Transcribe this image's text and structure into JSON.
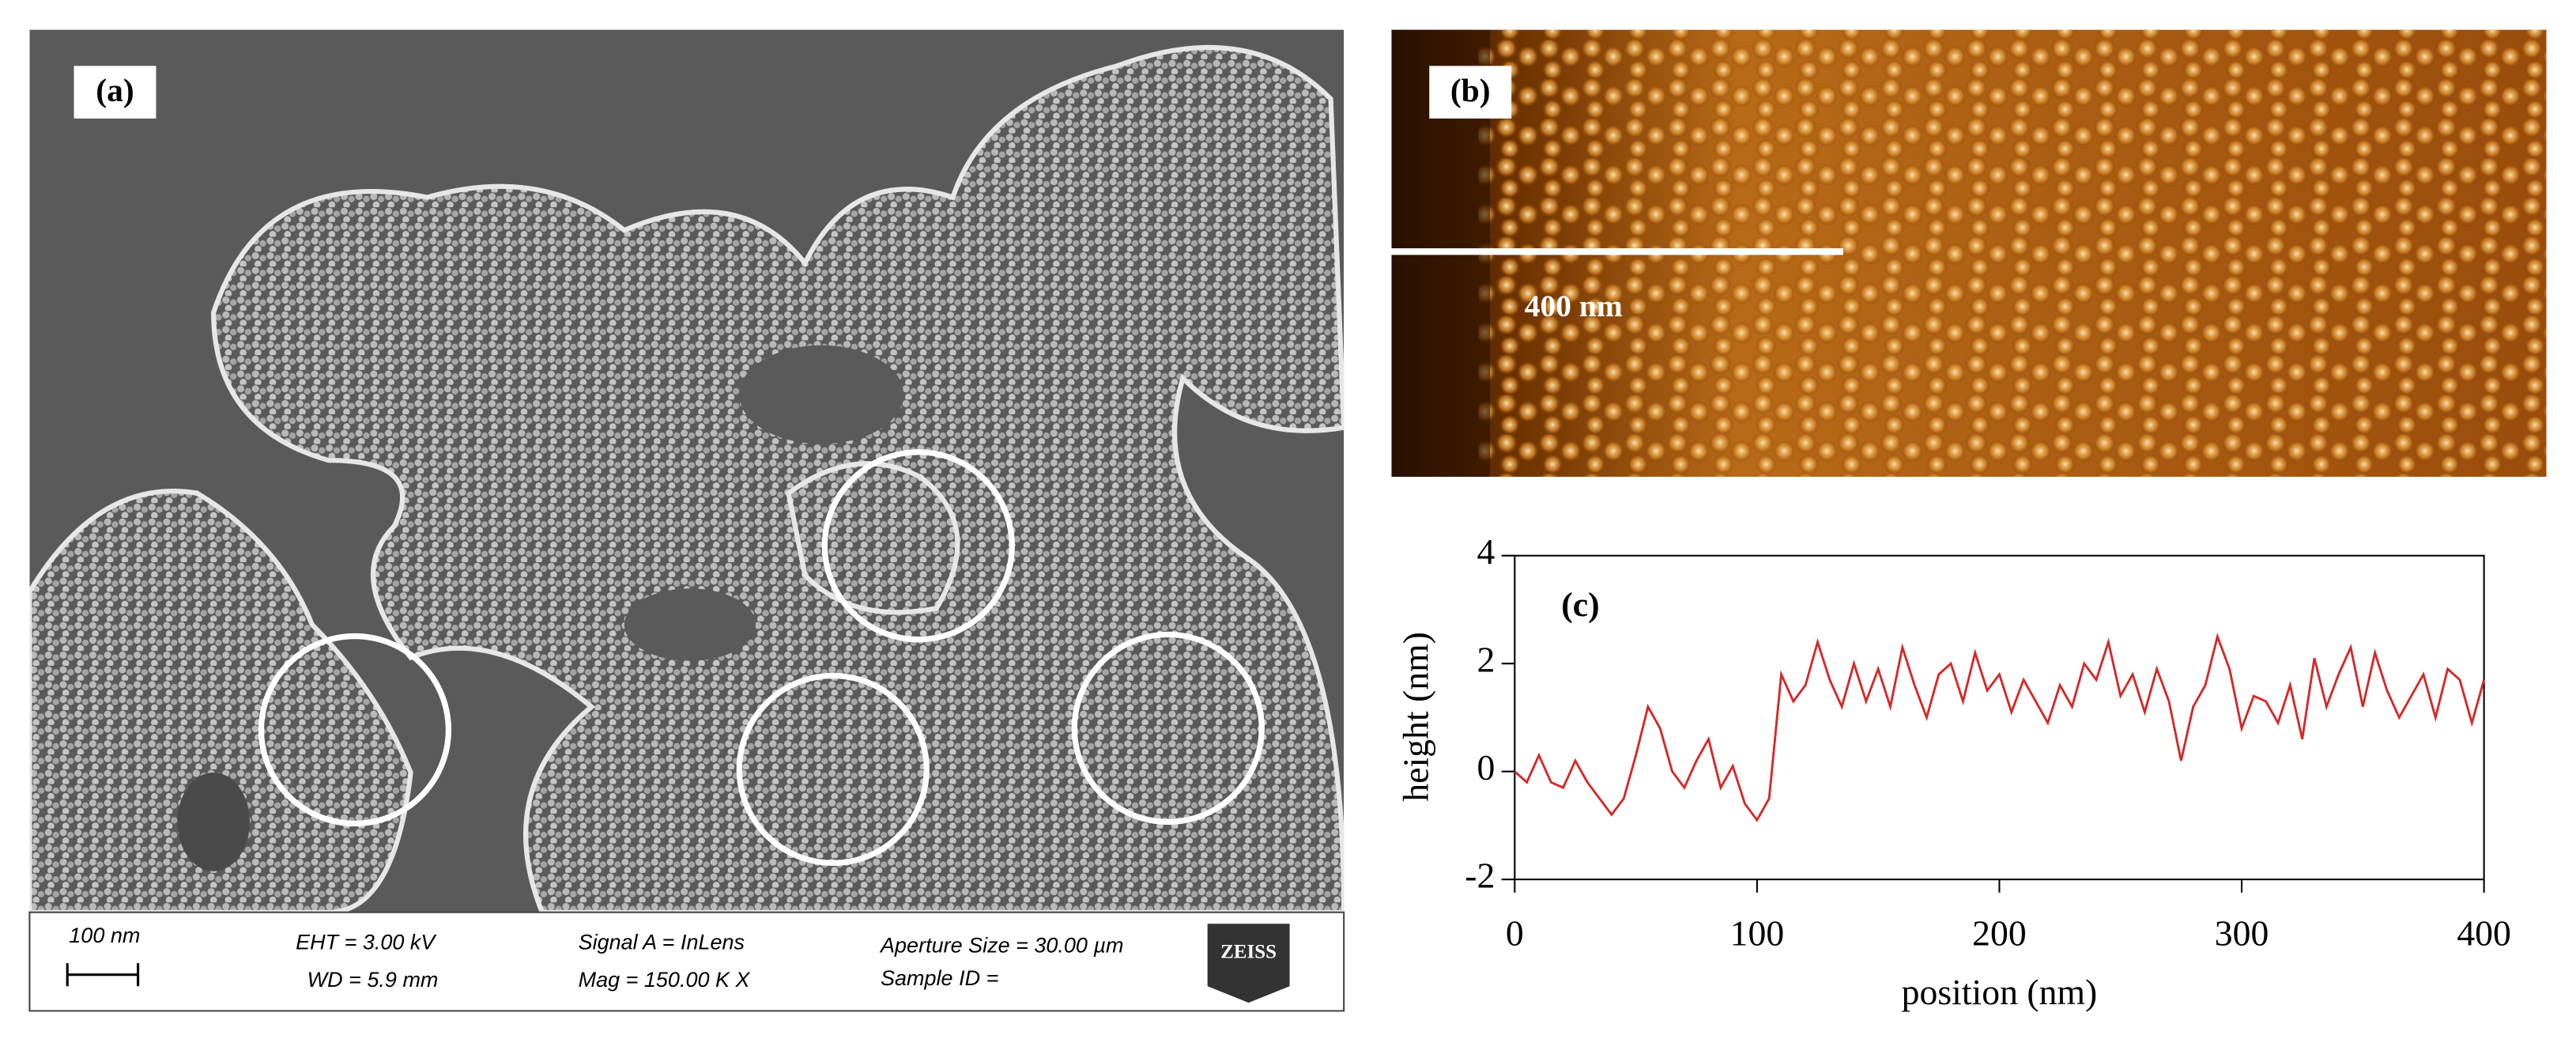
{
  "panels": {
    "a": {
      "label": "(a)",
      "scale_bar": "100 nm",
      "info": {
        "eht": "EHT = 3.00 kV",
        "wd": "WD = 5.9 mm",
        "signal": "Signal A = InLens",
        "mag": "Mag = 150.00 K X",
        "aperture": "Aperture Size = 30.00 µm",
        "sample": "Sample ID ="
      },
      "logo": "ZEISS"
    },
    "b": {
      "label": "(b)",
      "scale_bar": "400 nm"
    }
  },
  "chart_data": {
    "type": "line",
    "annotation": "(c)",
    "x_label": "position (nm)",
    "y_label": "height (nm)",
    "xlim": [
      0,
      400
    ],
    "ylim": [
      -2,
      4
    ],
    "xticks": [
      0,
      100,
      200,
      300,
      400
    ],
    "yticks": [
      -2,
      0,
      2,
      4
    ],
    "x": [
      0,
      5,
      10,
      15,
      20,
      25,
      30,
      35,
      40,
      45,
      50,
      55,
      60,
      65,
      70,
      75,
      80,
      85,
      90,
      95,
      100,
      105,
      110,
      115,
      120,
      125,
      130,
      135,
      140,
      145,
      150,
      155,
      160,
      165,
      170,
      175,
      180,
      185,
      190,
      195,
      200,
      205,
      210,
      215,
      220,
      225,
      230,
      235,
      240,
      245,
      250,
      255,
      260,
      265,
      270,
      275,
      280,
      285,
      290,
      295,
      300,
      305,
      310,
      315,
      320,
      325,
      330,
      335,
      340,
      345,
      350,
      355,
      360,
      365,
      370,
      375,
      380,
      385,
      390,
      395,
      400
    ],
    "series": [
      {
        "color": "#d42a2a",
        "values": [
          0,
          -0.2,
          0.3,
          -0.2,
          -0.3,
          0.2,
          -0.2,
          -0.5,
          -0.8,
          -0.5,
          0.3,
          1.2,
          0.8,
          0,
          -0.3,
          0.2,
          0.6,
          -0.3,
          0.1,
          -0.6,
          -0.9,
          -0.5,
          1.8,
          1.3,
          1.6,
          2.4,
          1.7,
          1.2,
          2.0,
          1.3,
          1.9,
          1.2,
          2.3,
          1.6,
          1.0,
          1.8,
          2.0,
          1.3,
          2.2,
          1.5,
          1.8,
          1.1,
          1.7,
          1.3,
          0.9,
          1.6,
          1.2,
          2.0,
          1.7,
          2.4,
          1.4,
          1.8,
          1.1,
          1.9,
          1.3,
          0.2,
          1.2,
          1.6,
          2.5,
          1.9,
          0.8,
          1.4,
          1.3,
          0.9,
          1.6,
          0.6,
          2.1,
          1.2,
          1.8,
          2.3,
          1.2,
          2.2,
          1.5,
          1.0,
          1.4,
          1.8,
          1.0,
          1.9,
          1.7,
          0.9,
          1.7
        ]
      }
    ]
  }
}
